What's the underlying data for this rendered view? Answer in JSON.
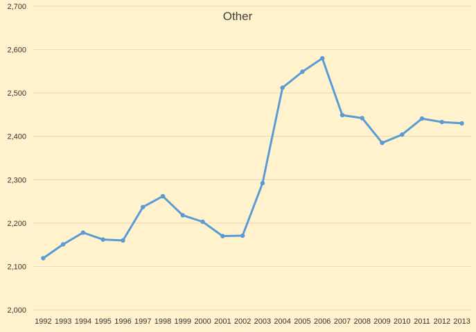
{
  "chart_data": {
    "type": "line",
    "title": "Other",
    "xlabel": "",
    "ylabel": "",
    "ylim": [
      2000,
      2700
    ],
    "yticks": [
      2000,
      2100,
      2200,
      2300,
      2400,
      2500,
      2600,
      2700
    ],
    "ytick_labels": [
      "2,000",
      "2,100",
      "2,200",
      "2,300",
      "2,400",
      "2,500",
      "2,600",
      "2,700"
    ],
    "grid": true,
    "legend": "none",
    "colors": {
      "background": "#FFF2CC",
      "line": "#5B9BD5",
      "grid": "#E6DAB5"
    },
    "categories": [
      "1992",
      "1993",
      "1994",
      "1995",
      "1996",
      "1997",
      "1998",
      "1999",
      "2000",
      "2001",
      "2002",
      "2003",
      "2004",
      "2005",
      "2006",
      "2007",
      "2008",
      "2009",
      "2010",
      "2011",
      "2012",
      "2013"
    ],
    "values": [
      2119,
      2151,
      2178,
      2162,
      2160,
      2237,
      2262,
      2218,
      2203,
      2170,
      2171,
      2292,
      2512,
      2549,
      2580,
      2449,
      2442,
      2385,
      2404,
      2441,
      2433,
      2430
    ]
  }
}
